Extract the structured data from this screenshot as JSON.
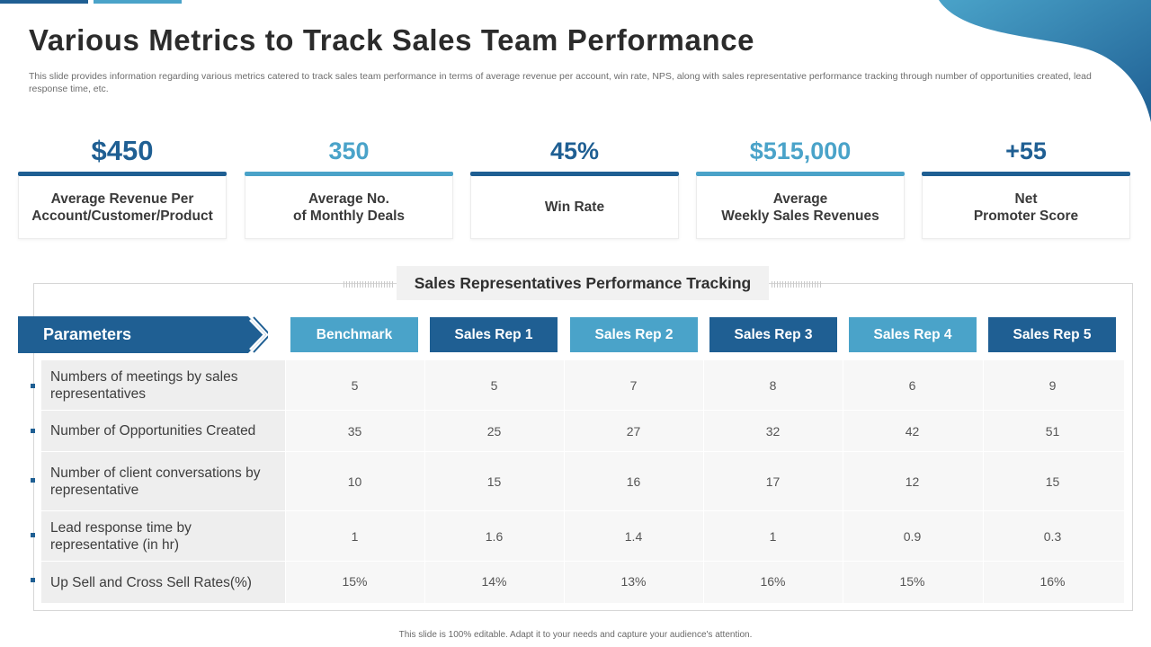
{
  "slide": {
    "title": "Various Metrics to Track Sales Team Performance",
    "subtitle": "This slide provides information regarding various metrics catered to track sales team performance in terms of average revenue per account, win rate, NPS, along with sales representative performance tracking through number of opportunities created, lead response time, etc.",
    "footer": "This slide is 100% editable. Adapt it to your needs and capture your audience's attention."
  },
  "colors": {
    "dark_blue": "#1f5f93",
    "light_blue": "#4aa3c9"
  },
  "kpis": [
    {
      "value": "$450",
      "label": "Average Revenue Per\nAccount/Customer/Product",
      "tone": "dark"
    },
    {
      "value": "350",
      "label": "Average No.\nof Monthly Deals",
      "tone": "light"
    },
    {
      "value": "45%",
      "label": "Win Rate",
      "tone": "dark"
    },
    {
      "value": "$515,000",
      "label": "Average\nWeekly Sales Revenues",
      "tone": "light"
    },
    {
      "value": "+55",
      "label": "Net\nPromoter Score",
      "tone": "dark"
    }
  ],
  "tracking": {
    "title": "Sales Representatives Performance Tracking",
    "parameters_label": "Parameters",
    "columns": [
      "Benchmark",
      "Sales Rep 1",
      "Sales Rep 2",
      "Sales Rep 3",
      "Sales Rep 4",
      "Sales Rep 5"
    ],
    "rows": [
      {
        "label": "Numbers of meetings by sales representatives",
        "values": [
          "5",
          "5",
          "7",
          "8",
          "6",
          "9"
        ]
      },
      {
        "label": "Number of Opportunities Created",
        "values": [
          "35",
          "25",
          "27",
          "32",
          "42",
          "51"
        ]
      },
      {
        "label": "Number of client conversations by representative",
        "values": [
          "10",
          "15",
          "16",
          "17",
          "12",
          "15"
        ]
      },
      {
        "label": "Lead response time by representative (in hr)",
        "values": [
          "1",
          "1.6",
          "1.4",
          "1",
          "0.9",
          "0.3"
        ]
      },
      {
        "label": "Up Sell and Cross Sell Rates(%)",
        "values": [
          "15%",
          "14%",
          "13%",
          "16%",
          "15%",
          "16%"
        ]
      }
    ]
  }
}
